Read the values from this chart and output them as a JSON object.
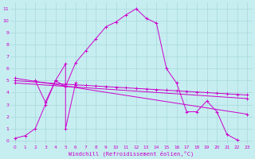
{
  "xlabel": "Windchill (Refroidissement éolien,°C)",
  "bg_color": "#c6eef0",
  "line_color": "#cc00cc",
  "xlim": [
    -0.5,
    23.5
  ],
  "ylim": [
    -0.3,
    11.5
  ],
  "xticks": [
    0,
    1,
    2,
    3,
    4,
    5,
    6,
    7,
    8,
    9,
    10,
    11,
    12,
    13,
    14,
    15,
    16,
    17,
    18,
    19,
    20,
    21,
    22,
    23
  ],
  "yticks": [
    0,
    1,
    2,
    3,
    4,
    5,
    6,
    7,
    8,
    9,
    10,
    11
  ],
  "grid_color": "#a8d8dc",
  "series": [
    {
      "x": [
        0,
        1,
        2,
        3,
        4,
        5,
        6,
        7,
        8,
        9,
        10,
        11,
        12,
        13,
        14,
        15,
        16,
        17,
        18,
        19,
        20,
        21,
        22
      ],
      "y": [
        0.2,
        0.4,
        1.0,
        3.0,
        5.0,
        4.5,
        6.5,
        7.5,
        8.5,
        9.5,
        9.9,
        10.5,
        11.0,
        10.2,
        9.8,
        6.0,
        4.8,
        2.4,
        2.4,
        3.3,
        2.4,
        0.5,
        0.05
      ]
    },
    {
      "x": [
        2,
        3,
        4,
        5,
        5,
        6
      ],
      "y": [
        5.0,
        3.2,
        5.0,
        6.4,
        1.0,
        4.8
      ]
    },
    {
      "x": [
        0,
        5,
        6,
        7,
        8,
        9,
        10,
        11,
        12,
        13,
        14,
        15,
        16,
        17,
        18,
        19,
        20,
        21,
        22,
        23
      ],
      "y": [
        5.0,
        4.7,
        4.65,
        4.6,
        4.55,
        4.5,
        4.45,
        4.4,
        4.35,
        4.3,
        4.25,
        4.2,
        4.15,
        4.1,
        4.05,
        4.0,
        3.95,
        3.9,
        3.85,
        3.8
      ]
    },
    {
      "x": [
        0,
        23
      ],
      "y": [
        4.8,
        3.5
      ]
    },
    {
      "x": [
        0,
        23
      ],
      "y": [
        5.2,
        2.2
      ]
    }
  ]
}
